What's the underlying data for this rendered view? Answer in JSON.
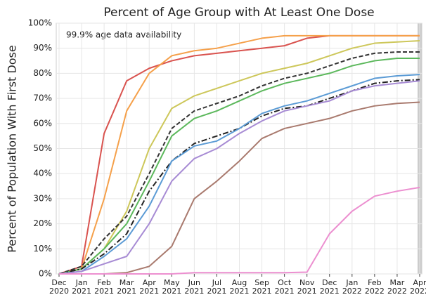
{
  "chart_data": {
    "type": "line",
    "title": "Percent of Age Group with At Least One Dose",
    "y_label": "Percent of Population With First Dose",
    "annotation": "99.9% age data availability",
    "x": [
      "2020-12",
      "2021-01",
      "2021-02",
      "2021-03",
      "2021-04",
      "2021-05",
      "2021-06",
      "2021-07",
      "2021-08",
      "2021-09",
      "2021-10",
      "2021-11",
      "2021-12",
      "2022-01",
      "2022-02",
      "2022-03",
      "2022-04"
    ],
    "xticks": [
      {
        "value": "2020-12",
        "label": "Dec 2020"
      },
      {
        "value": "2021-01",
        "label": "Jan 2021"
      },
      {
        "value": "2021-02",
        "label": "Feb 2021"
      },
      {
        "value": "2021-03",
        "label": "Mar 2021"
      },
      {
        "value": "2021-04",
        "label": "Apr 2021"
      },
      {
        "value": "2021-05",
        "label": "May 2021"
      },
      {
        "value": "2021-06",
        "label": "Jun 2021"
      },
      {
        "value": "2021-07",
        "label": "Jul 2021"
      },
      {
        "value": "2021-08",
        "label": "Aug 2021"
      },
      {
        "value": "2021-09",
        "label": "Sep 2021"
      },
      {
        "value": "2021-10",
        "label": "Oct 2021"
      },
      {
        "value": "2021-11",
        "label": "Nov 2021"
      },
      {
        "value": "2021-12",
        "label": "Dec 2021"
      },
      {
        "value": "2022-01",
        "label": "Jan 2022"
      },
      {
        "value": "2022-02",
        "label": "Feb 2022"
      },
      {
        "value": "2022-03",
        "label": "Mar 2022"
      },
      {
        "value": "2022-04",
        "label": "Apr 2022"
      }
    ],
    "ylim": [
      0,
      100
    ],
    "yticks": [
      {
        "value": 0,
        "label": "0%"
      },
      {
        "value": 10,
        "label": "10%"
      },
      {
        "value": 20,
        "label": "20%"
      },
      {
        "value": 30,
        "label": "30%"
      },
      {
        "value": 40,
        "label": "40%"
      },
      {
        "value": 50,
        "label": "50%"
      },
      {
        "value": 60,
        "label": "60%"
      },
      {
        "value": 70,
        "label": "70%"
      },
      {
        "value": 80,
        "label": "80%"
      },
      {
        "value": 90,
        "label": "90%"
      },
      {
        "value": 100,
        "label": "100%"
      }
    ],
    "grid": true,
    "series": [
      {
        "color": "#d9534f",
        "linestyle": "solid",
        "values": [
          0,
          3,
          56,
          77,
          82,
          85,
          87,
          88,
          89,
          90,
          91,
          94,
          95,
          95,
          95,
          95,
          95
        ]
      },
      {
        "color": "#f5a04a",
        "linestyle": "solid",
        "values": [
          0,
          2,
          30,
          65,
          80,
          87,
          89,
          90,
          92,
          94,
          95,
          95,
          95,
          95,
          95,
          95,
          95
        ]
      },
      {
        "color": "#cdc75a",
        "linestyle": "solid",
        "values": [
          0,
          2,
          10,
          25,
          50,
          66,
          71,
          74,
          77,
          80,
          82,
          84,
          87,
          90,
          92,
          92.5,
          93
        ]
      },
      {
        "color": "#333333",
        "linestyle": "dashed",
        "values": [
          0,
          3,
          14,
          23,
          40,
          58,
          65,
          68,
          71,
          75,
          78,
          80,
          83,
          86,
          88,
          88.5,
          88.5
        ]
      },
      {
        "color": "#5cb85c",
        "linestyle": "solid",
        "values": [
          0,
          2,
          10,
          20,
          37,
          55,
          62,
          65,
          69,
          73,
          76,
          78,
          80,
          83,
          85,
          86,
          86
        ]
      },
      {
        "color": "#222222",
        "linestyle": "dashdot",
        "values": [
          0,
          2,
          8,
          16,
          33,
          45,
          52,
          55,
          58,
          63,
          66,
          67,
          70,
          73,
          76,
          77,
          77.5
        ]
      },
      {
        "color": "#5b9bd5",
        "linestyle": "solid",
        "values": [
          0,
          1,
          7,
          14,
          27,
          45,
          51,
          53,
          58,
          64,
          67,
          69,
          72,
          75,
          78,
          79,
          79.5
        ]
      },
      {
        "color": "#a78bd4",
        "linestyle": "solid",
        "values": [
          0,
          1,
          4,
          7,
          20,
          37,
          46,
          50,
          56,
          61,
          65,
          67,
          69,
          73,
          75,
          76,
          77
        ]
      },
      {
        "color": "#a97a6e",
        "linestyle": "solid",
        "values": [
          0,
          0,
          0,
          0.5,
          3,
          11,
          30,
          37,
          45,
          54,
          58,
          60,
          62,
          65,
          67,
          68,
          68.5
        ]
      },
      {
        "color": "#ec8fd0",
        "linestyle": "solid",
        "values": [
          0,
          0,
          0,
          0,
          0,
          0,
          0.5,
          0.5,
          0.5,
          0.5,
          0.5,
          0.7,
          16,
          25,
          31,
          33,
          34.5
        ]
      }
    ]
  }
}
